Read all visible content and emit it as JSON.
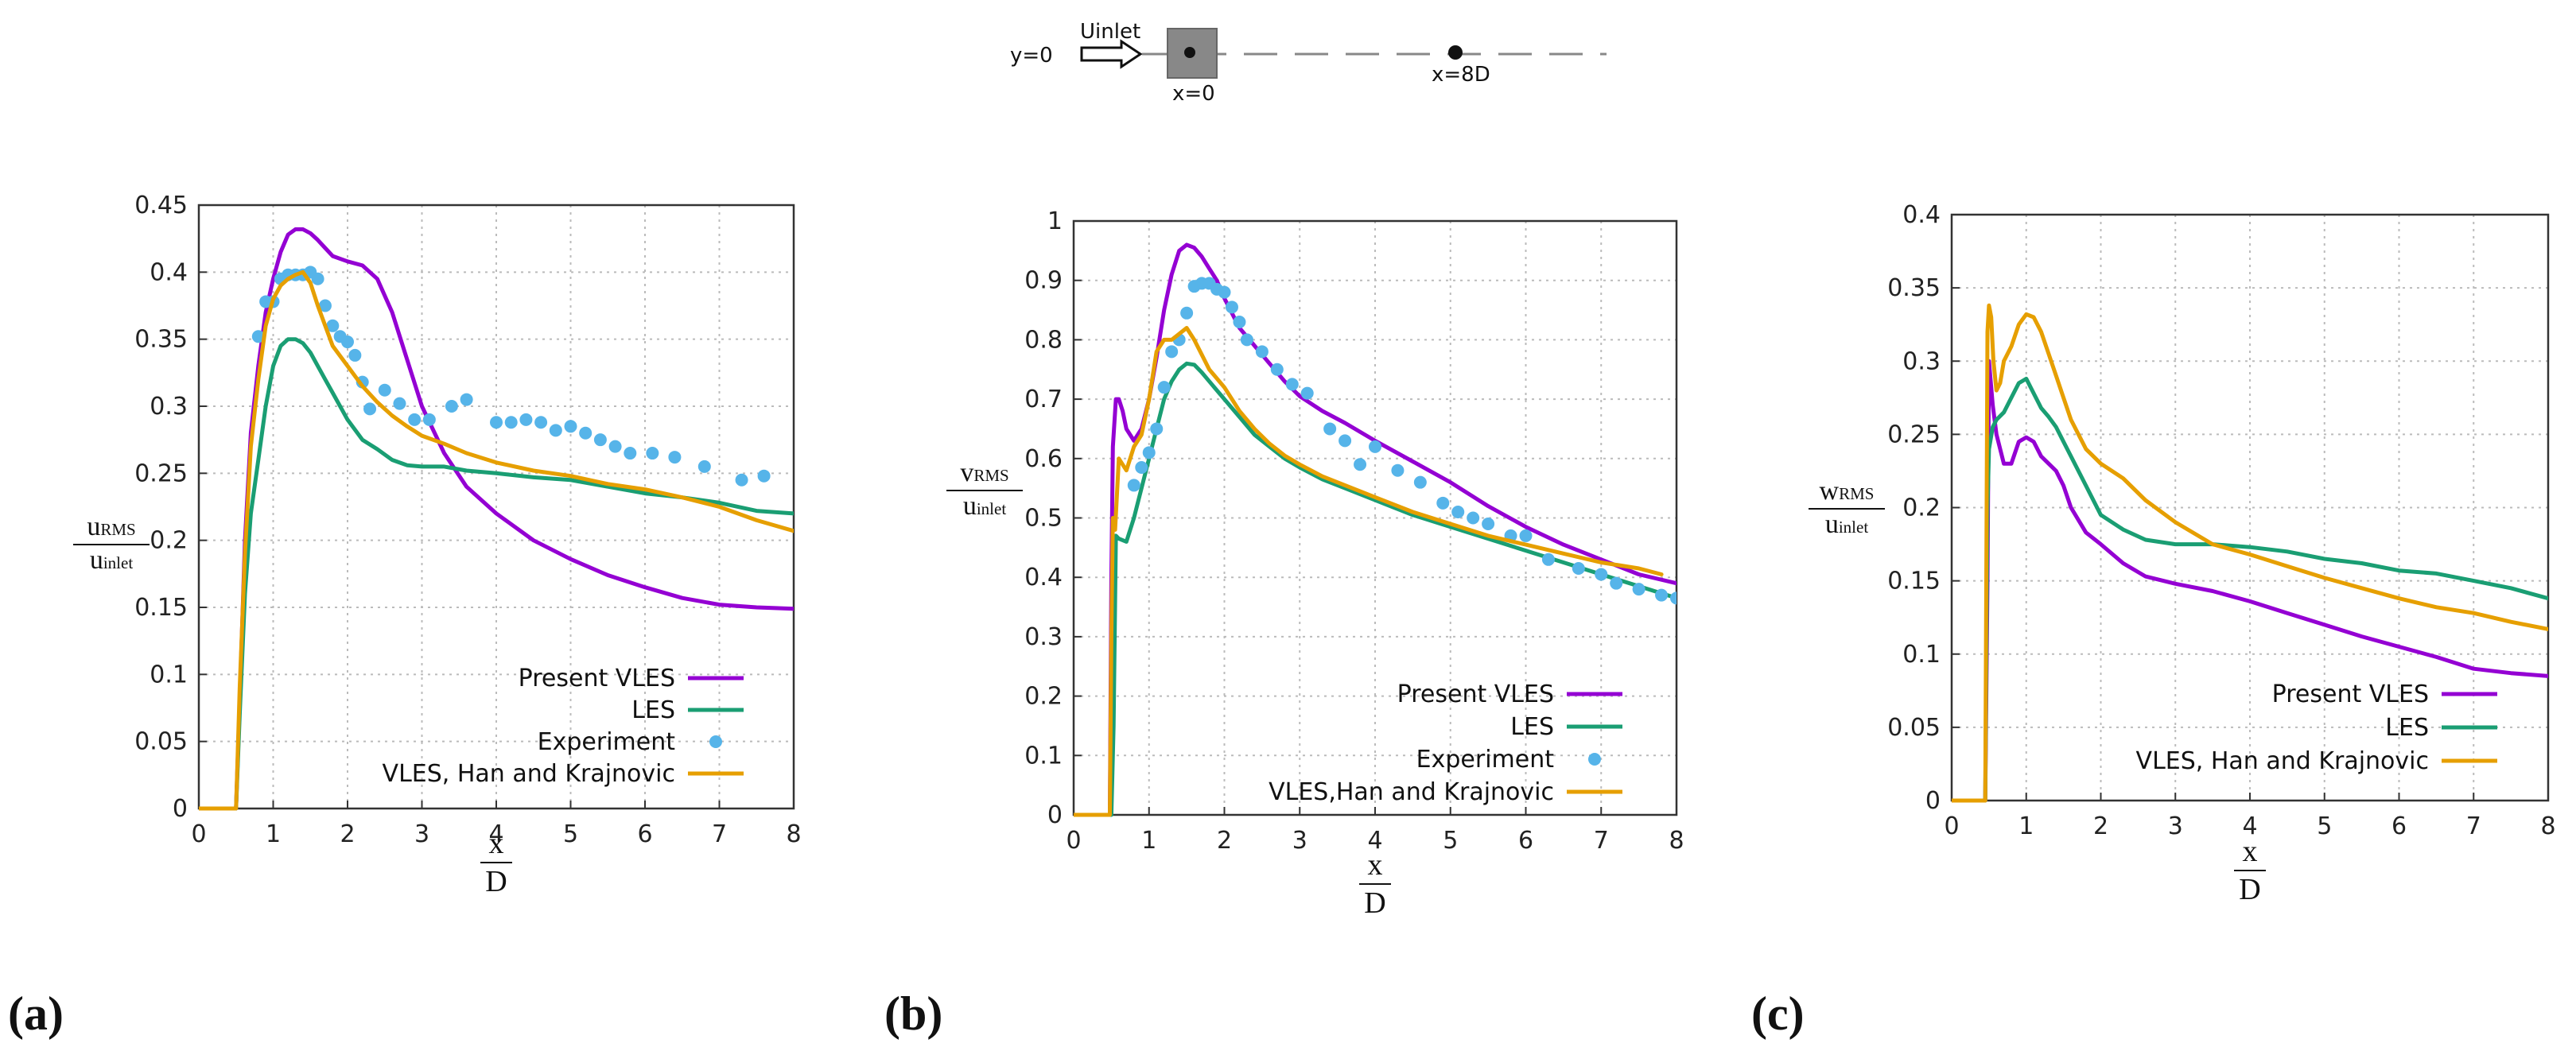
{
  "schematic": {
    "y_label": "y=0",
    "inlet_label": "Uinlet",
    "x0_label": "x=0",
    "x8_label": "x=8D"
  },
  "colors": {
    "present": "#9400D3",
    "les": "#1A9E73",
    "experiment": "#56B4E9",
    "han": "#E69F00",
    "grid": "#bbbbbb",
    "axis": "#333333"
  },
  "chart_data": [
    {
      "id": "a",
      "panel_label": "(a)",
      "type": "line",
      "xlabel_num": "x",
      "xlabel_den": "D",
      "ylabel_num_main": "u",
      "ylabel_num_sub": "RMS",
      "ylabel_den_main": "u",
      "ylabel_den_sub": "inlet",
      "xlim": [
        0,
        8
      ],
      "ylim": [
        0,
        0.45
      ],
      "xticks": [
        0,
        1,
        2,
        3,
        4,
        5,
        6,
        7,
        8
      ],
      "yticks": [
        0,
        0.05,
        0.1,
        0.15,
        0.2,
        0.25,
        0.3,
        0.35,
        0.4,
        0.45
      ],
      "grid": true,
      "legend_position": "bottom-right",
      "series": [
        {
          "name": "Present VLES",
          "key": "present",
          "style": "line",
          "x": [
            0,
            0.5,
            0.55,
            0.62,
            0.7,
            0.8,
            0.9,
            1.0,
            1.1,
            1.2,
            1.3,
            1.4,
            1.5,
            1.6,
            1.7,
            1.8,
            2.0,
            2.2,
            2.4,
            2.6,
            2.8,
            3.0,
            3.3,
            3.6,
            4.0,
            4.5,
            5.0,
            5.5,
            6.0,
            6.5,
            7.0,
            7.5,
            8.0
          ],
          "y": [
            0,
            0,
            0.08,
            0.2,
            0.28,
            0.33,
            0.37,
            0.395,
            0.415,
            0.428,
            0.432,
            0.432,
            0.429,
            0.424,
            0.418,
            0.412,
            0.408,
            0.405,
            0.395,
            0.37,
            0.335,
            0.3,
            0.265,
            0.24,
            0.22,
            0.2,
            0.186,
            0.174,
            0.165,
            0.157,
            0.152,
            0.15,
            0.149
          ]
        },
        {
          "name": "LES",
          "key": "les",
          "style": "line",
          "x": [
            0,
            0.5,
            0.55,
            0.62,
            0.7,
            0.8,
            0.9,
            1.0,
            1.1,
            1.2,
            1.3,
            1.4,
            1.5,
            1.6,
            1.7,
            1.8,
            2.0,
            2.2,
            2.4,
            2.6,
            2.8,
            3.0,
            3.3,
            3.6,
            4.0,
            4.5,
            5.0,
            5.5,
            6.0,
            6.5,
            7.0,
            7.5,
            8.0
          ],
          "y": [
            0,
            0,
            0.07,
            0.16,
            0.22,
            0.26,
            0.3,
            0.33,
            0.345,
            0.35,
            0.35,
            0.347,
            0.34,
            0.33,
            0.32,
            0.31,
            0.29,
            0.275,
            0.268,
            0.26,
            0.256,
            0.255,
            0.255,
            0.252,
            0.25,
            0.247,
            0.245,
            0.24,
            0.235,
            0.232,
            0.228,
            0.222,
            0.22
          ]
        },
        {
          "name": "Experiment",
          "key": "experiment",
          "style": "points",
          "x": [
            0.8,
            0.9,
            1.0,
            1.1,
            1.2,
            1.3,
            1.4,
            1.5,
            1.6,
            1.7,
            1.8,
            1.9,
            2.0,
            2.1,
            2.2,
            2.3,
            2.5,
            2.7,
            2.9,
            3.1,
            3.4,
            3.6,
            4.0,
            4.2,
            4.4,
            4.6,
            4.8,
            5.0,
            5.2,
            5.4,
            5.6,
            5.8,
            6.1,
            6.4,
            6.8,
            7.3,
            7.6
          ],
          "y": [
            0.352,
            0.378,
            0.378,
            0.395,
            0.398,
            0.398,
            0.398,
            0.4,
            0.395,
            0.375,
            0.36,
            0.352,
            0.348,
            0.338,
            0.318,
            0.298,
            0.312,
            0.302,
            0.29,
            0.29,
            0.3,
            0.305,
            0.288,
            0.288,
            0.29,
            0.288,
            0.282,
            0.285,
            0.28,
            0.275,
            0.27,
            0.265,
            0.265,
            0.262,
            0.255,
            0.245,
            0.248
          ]
        },
        {
          "name": "VLES, Han and Krajnovic",
          "key": "han",
          "style": "line",
          "x": [
            0,
            0.5,
            0.55,
            0.62,
            0.7,
            0.8,
            0.9,
            1.0,
            1.1,
            1.2,
            1.3,
            1.4,
            1.5,
            1.6,
            1.7,
            1.8,
            2.0,
            2.2,
            2.4,
            2.6,
            2.8,
            3.0,
            3.3,
            3.6,
            4.0,
            4.5,
            5.0,
            5.5,
            6.0,
            6.5,
            7.0,
            7.5,
            8.0
          ],
          "y": [
            0,
            0,
            0.09,
            0.19,
            0.27,
            0.32,
            0.36,
            0.38,
            0.39,
            0.395,
            0.398,
            0.4,
            0.392,
            0.375,
            0.36,
            0.345,
            0.33,
            0.315,
            0.303,
            0.293,
            0.285,
            0.278,
            0.272,
            0.265,
            0.258,
            0.252,
            0.248,
            0.242,
            0.238,
            0.232,
            0.225,
            0.215,
            0.207
          ]
        }
      ]
    },
    {
      "id": "b",
      "panel_label": "(b)",
      "type": "line",
      "xlabel_num": "x",
      "xlabel_den": "D",
      "ylabel_num_main": "v",
      "ylabel_num_sub": "RMS",
      "ylabel_den_main": "u",
      "ylabel_den_sub": "inlet",
      "xlim": [
        0,
        8
      ],
      "ylim": [
        0,
        1
      ],
      "xticks": [
        0,
        1,
        2,
        3,
        4,
        5,
        6,
        7,
        8
      ],
      "yticks": [
        0,
        0.1,
        0.2,
        0.3,
        0.4,
        0.5,
        0.6,
        0.7,
        0.8,
        0.9,
        1
      ],
      "grid": true,
      "legend_position": "bottom-right",
      "series": [
        {
          "name": "Present VLES",
          "key": "present",
          "style": "line",
          "x": [
            0,
            0.48,
            0.5,
            0.52,
            0.56,
            0.6,
            0.65,
            0.7,
            0.8,
            0.9,
            1.0,
            1.1,
            1.2,
            1.3,
            1.4,
            1.5,
            1.6,
            1.7,
            1.8,
            1.9,
            2.0,
            2.2,
            2.4,
            2.6,
            2.8,
            3.0,
            3.3,
            3.6,
            4.0,
            4.5,
            5.0,
            5.5,
            6.0,
            6.5,
            7.0,
            7.5,
            8.0
          ],
          "y": [
            0,
            0,
            0.4,
            0.62,
            0.7,
            0.7,
            0.68,
            0.65,
            0.63,
            0.65,
            0.7,
            0.77,
            0.85,
            0.91,
            0.95,
            0.96,
            0.955,
            0.94,
            0.92,
            0.9,
            0.87,
            0.82,
            0.79,
            0.76,
            0.73,
            0.705,
            0.68,
            0.66,
            0.63,
            0.595,
            0.56,
            0.52,
            0.485,
            0.455,
            0.43,
            0.405,
            0.39
          ]
        },
        {
          "name": "LES",
          "key": "les",
          "style": "line",
          "x": [
            0,
            0.5,
            0.53,
            0.56,
            0.6,
            0.7,
            0.8,
            0.9,
            1.0,
            1.1,
            1.2,
            1.3,
            1.4,
            1.5,
            1.6,
            1.7,
            1.8,
            2.0,
            2.2,
            2.4,
            2.6,
            2.8,
            3.0,
            3.3,
            3.6,
            4.0,
            4.5,
            5.0,
            5.5,
            6.0,
            6.5,
            7.0,
            7.5,
            8.0
          ],
          "y": [
            0,
            0,
            0.15,
            0.47,
            0.465,
            0.46,
            0.5,
            0.55,
            0.6,
            0.65,
            0.7,
            0.73,
            0.75,
            0.76,
            0.758,
            0.745,
            0.73,
            0.7,
            0.67,
            0.64,
            0.62,
            0.6,
            0.585,
            0.565,
            0.55,
            0.53,
            0.505,
            0.485,
            0.465,
            0.445,
            0.425,
            0.405,
            0.385,
            0.365
          ]
        },
        {
          "name": "Experiment",
          "key": "experiment",
          "style": "points",
          "x": [
            0.8,
            0.9,
            1.0,
            1.1,
            1.2,
            1.3,
            1.4,
            1.5,
            1.6,
            1.7,
            1.8,
            1.9,
            2.0,
            2.1,
            2.2,
            2.3,
            2.5,
            2.7,
            2.9,
            3.1,
            3.4,
            3.6,
            3.8,
            4.0,
            4.3,
            4.6,
            4.9,
            5.1,
            5.3,
            5.5,
            5.8,
            6.0,
            6.3,
            6.7,
            7.0,
            7.2,
            7.5,
            7.8,
            8.0
          ],
          "y": [
            0.555,
            0.585,
            0.61,
            0.65,
            0.72,
            0.78,
            0.8,
            0.845,
            0.89,
            0.895,
            0.895,
            0.885,
            0.88,
            0.855,
            0.83,
            0.8,
            0.78,
            0.75,
            0.725,
            0.71,
            0.65,
            0.63,
            0.59,
            0.62,
            0.58,
            0.56,
            0.525,
            0.51,
            0.5,
            0.49,
            0.47,
            0.47,
            0.43,
            0.415,
            0.405,
            0.39,
            0.38,
            0.37,
            0.365
          ]
        },
        {
          "name": "VLES,Han and Krajnovic",
          "key": "han",
          "style": "line",
          "x": [
            0,
            0.48,
            0.5,
            0.52,
            0.55,
            0.6,
            0.7,
            0.8,
            0.9,
            1.0,
            1.1,
            1.2,
            1.3,
            1.4,
            1.5,
            1.6,
            1.7,
            1.8,
            2.0,
            2.2,
            2.4,
            2.6,
            2.8,
            3.0,
            3.3,
            3.6,
            4.0,
            4.5,
            5.0,
            5.5,
            6.0,
            6.5,
            7.0,
            7.5,
            7.8
          ],
          "y": [
            0,
            0,
            0.3,
            0.5,
            0.48,
            0.6,
            0.58,
            0.62,
            0.64,
            0.7,
            0.78,
            0.8,
            0.8,
            0.81,
            0.82,
            0.8,
            0.775,
            0.75,
            0.72,
            0.68,
            0.65,
            0.625,
            0.605,
            0.59,
            0.57,
            0.555,
            0.535,
            0.51,
            0.49,
            0.47,
            0.455,
            0.44,
            0.425,
            0.415,
            0.405
          ]
        }
      ]
    },
    {
      "id": "c",
      "panel_label": "(c)",
      "type": "line",
      "xlabel_num": "x",
      "xlabel_den": "D",
      "ylabel_num_main": "w",
      "ylabel_num_sub": "RMS",
      "ylabel_den_main": "u",
      "ylabel_den_sub": "inlet",
      "xlim": [
        0,
        8
      ],
      "ylim": [
        0,
        0.4
      ],
      "xticks": [
        0,
        1,
        2,
        3,
        4,
        5,
        6,
        7,
        8
      ],
      "yticks": [
        0,
        0.05,
        0.1,
        0.15,
        0.2,
        0.25,
        0.3,
        0.35,
        0.4
      ],
      "grid": true,
      "legend_position": "bottom-right",
      "series": [
        {
          "name": "Present VLES",
          "key": "present",
          "style": "line",
          "x": [
            0,
            0.45,
            0.48,
            0.5,
            0.55,
            0.6,
            0.7,
            0.8,
            0.9,
            1.0,
            1.1,
            1.2,
            1.3,
            1.4,
            1.5,
            1.6,
            1.8,
            2.0,
            2.3,
            2.6,
            3.0,
            3.5,
            4.0,
            4.5,
            5.0,
            5.5,
            6.0,
            6.5,
            7.0,
            7.5,
            8.0
          ],
          "y": [
            0,
            0,
            0.15,
            0.3,
            0.27,
            0.25,
            0.23,
            0.23,
            0.245,
            0.248,
            0.245,
            0.235,
            0.23,
            0.225,
            0.215,
            0.2,
            0.183,
            0.175,
            0.162,
            0.153,
            0.148,
            0.143,
            0.136,
            0.128,
            0.12,
            0.112,
            0.105,
            0.098,
            0.09,
            0.087,
            0.085
          ]
        },
        {
          "name": "LES",
          "key": "les",
          "style": "line",
          "x": [
            0,
            0.45,
            0.48,
            0.5,
            0.55,
            0.6,
            0.7,
            0.8,
            0.9,
            1.0,
            1.1,
            1.2,
            1.3,
            1.4,
            1.5,
            1.6,
            1.8,
            2.0,
            2.3,
            2.6,
            3.0,
            3.5,
            4.0,
            4.5,
            5.0,
            5.5,
            6.0,
            6.5,
            7.0,
            7.5,
            8.0
          ],
          "y": [
            0,
            0,
            0.2,
            0.24,
            0.255,
            0.26,
            0.265,
            0.275,
            0.285,
            0.288,
            0.278,
            0.268,
            0.262,
            0.255,
            0.245,
            0.235,
            0.215,
            0.195,
            0.185,
            0.178,
            0.175,
            0.175,
            0.173,
            0.17,
            0.165,
            0.162,
            0.157,
            0.155,
            0.15,
            0.145,
            0.138
          ]
        },
        {
          "name": "VLES, Han and Krajnovic",
          "key": "han",
          "style": "line",
          "x": [
            0,
            0.45,
            0.48,
            0.5,
            0.53,
            0.56,
            0.6,
            0.65,
            0.7,
            0.8,
            0.9,
            1.0,
            1.1,
            1.2,
            1.3,
            1.4,
            1.5,
            1.6,
            1.8,
            2.0,
            2.3,
            2.6,
            3.0,
            3.5,
            4.0,
            4.5,
            5.0,
            5.5,
            6.0,
            6.5,
            7.0,
            7.5,
            8.0
          ],
          "y": [
            0,
            0,
            0.32,
            0.338,
            0.33,
            0.3,
            0.28,
            0.285,
            0.3,
            0.31,
            0.325,
            0.332,
            0.33,
            0.32,
            0.305,
            0.29,
            0.275,
            0.26,
            0.24,
            0.23,
            0.22,
            0.205,
            0.19,
            0.175,
            0.168,
            0.16,
            0.152,
            0.145,
            0.138,
            0.132,
            0.128,
            0.122,
            0.117
          ]
        }
      ]
    }
  ]
}
